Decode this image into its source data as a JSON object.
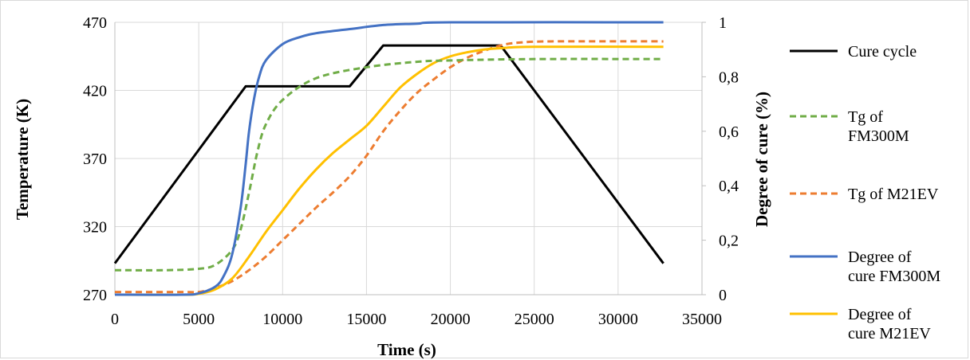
{
  "chart_data": {
    "type": "line",
    "xlabel": "Time (s)",
    "ylabel_left": "Temperature (K)",
    "ylabel_right": "Degree of cure (%)",
    "xlim": [
      0,
      35000
    ],
    "ylim_left": [
      270,
      470
    ],
    "ylim_right": [
      0,
      1
    ],
    "x_ticks": [
      "0",
      "5000",
      "10000",
      "15000",
      "20000",
      "25000",
      "30000",
      "35000"
    ],
    "y_left_ticks": [
      "270",
      "320",
      "370",
      "420",
      "470"
    ],
    "y_right_ticks": [
      "0",
      "0,2",
      "0,4",
      "0,6",
      "0,8",
      "1"
    ],
    "grid": true,
    "legend_position": "right",
    "series": [
      {
        "name": "Cure cycle",
        "axis": "left",
        "color": "#000000",
        "dash": "solid",
        "points": [
          [
            0,
            293
          ],
          [
            7800,
            423
          ],
          [
            14000,
            423
          ],
          [
            16000,
            453
          ],
          [
            23000,
            453
          ],
          [
            32700,
            293
          ]
        ]
      },
      {
        "name": "Tg of FM300M",
        "axis": "left",
        "color": "#70AD47",
        "dash": "dashed",
        "points": [
          [
            0,
            288
          ],
          [
            3000,
            288
          ],
          [
            5000,
            289
          ],
          [
            6000,
            292
          ],
          [
            7000,
            303
          ],
          [
            7500,
            318
          ],
          [
            8000,
            345
          ],
          [
            8500,
            375
          ],
          [
            9000,
            395
          ],
          [
            10000,
            413
          ],
          [
            12000,
            429
          ],
          [
            15000,
            437
          ],
          [
            18000,
            441
          ],
          [
            20000,
            442
          ],
          [
            25000,
            443
          ],
          [
            32700,
            443
          ]
        ]
      },
      {
        "name": "Tg of M21EV",
        "axis": "left",
        "color": "#ED7D31",
        "dash": "dashed",
        "points": [
          [
            0,
            272
          ],
          [
            4000,
            272
          ],
          [
            5000,
            272
          ],
          [
            6000,
            275
          ],
          [
            7000,
            280
          ],
          [
            8000,
            288
          ],
          [
            9000,
            298
          ],
          [
            10000,
            310
          ],
          [
            11000,
            322
          ],
          [
            12000,
            334
          ],
          [
            13000,
            345
          ],
          [
            14000,
            357
          ],
          [
            15000,
            372
          ],
          [
            16000,
            390
          ],
          [
            17000,
            405
          ],
          [
            18000,
            418
          ],
          [
            19000,
            428
          ],
          [
            20000,
            437
          ],
          [
            21000,
            444
          ],
          [
            22000,
            449
          ],
          [
            23000,
            453
          ],
          [
            24000,
            455
          ],
          [
            26000,
            456
          ],
          [
            32700,
            456
          ]
        ]
      },
      {
        "name": "Degree of cure FM300M",
        "axis": "right",
        "color": "#4472C4",
        "dash": "solid",
        "points": [
          [
            0,
            0.0
          ],
          [
            4000,
            0.0
          ],
          [
            5000,
            0.005
          ],
          [
            6000,
            0.03
          ],
          [
            6500,
            0.07
          ],
          [
            7000,
            0.15
          ],
          [
            7500,
            0.32
          ],
          [
            7800,
            0.48
          ],
          [
            8000,
            0.6
          ],
          [
            8300,
            0.72
          ],
          [
            8600,
            0.8
          ],
          [
            9000,
            0.86
          ],
          [
            10000,
            0.92
          ],
          [
            11000,
            0.945
          ],
          [
            12000,
            0.96
          ],
          [
            14000,
            0.975
          ],
          [
            16000,
            0.99
          ],
          [
            18000,
            0.995
          ],
          [
            20000,
            1.0
          ],
          [
            32700,
            1.0
          ]
        ]
      },
      {
        "name": "Degree of cure M21EV",
        "axis": "right",
        "color": "#FFC000",
        "dash": "solid",
        "points": [
          [
            0,
            0.0
          ],
          [
            4000,
            0.0
          ],
          [
            5000,
            0.003
          ],
          [
            6000,
            0.02
          ],
          [
            7000,
            0.06
          ],
          [
            8000,
            0.14
          ],
          [
            9000,
            0.23
          ],
          [
            10000,
            0.31
          ],
          [
            11000,
            0.39
          ],
          [
            12000,
            0.46
          ],
          [
            13000,
            0.52
          ],
          [
            14000,
            0.57
          ],
          [
            15000,
            0.62
          ],
          [
            16000,
            0.69
          ],
          [
            17000,
            0.76
          ],
          [
            18000,
            0.81
          ],
          [
            19000,
            0.85
          ],
          [
            20000,
            0.875
          ],
          [
            21000,
            0.89
          ],
          [
            22000,
            0.9
          ],
          [
            23000,
            0.905
          ],
          [
            25000,
            0.91
          ],
          [
            32700,
            0.91
          ]
        ]
      }
    ]
  }
}
